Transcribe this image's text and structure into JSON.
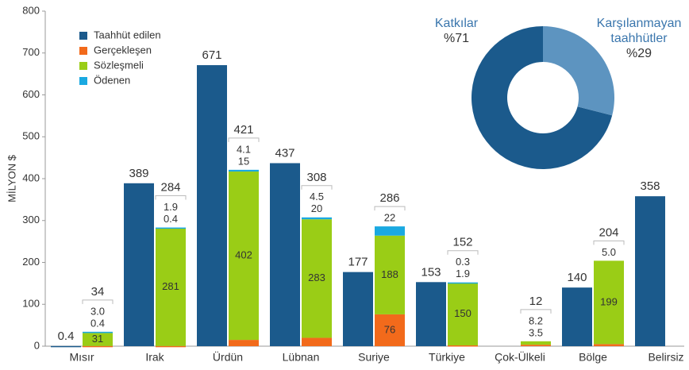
{
  "chart_data": [
    {
      "type": "bar",
      "ylabel": "MİLYON $",
      "categories": [
        "Mısır",
        "Irak",
        "Ürdün",
        "Lübnan",
        "Suriye",
        "Türkiye",
        "Çok-Ülkeli",
        "Bölge",
        "Belirsiz"
      ],
      "series": [
        {
          "name": "Taahhüt edilen",
          "color": "#1b5a8c",
          "values": [
            0.4,
            389,
            671,
            437,
            177,
            153,
            null,
            140,
            358
          ]
        },
        {
          "name": "Gerçekleşen",
          "color": "#f26a1b",
          "values": [
            0.4,
            0.4,
            15,
            20,
            76,
            1.9,
            3.5,
            5.0,
            null
          ],
          "value_labels": [
            "0.4",
            "0.4",
            "15",
            "20",
            "76",
            "1.9",
            "3.5",
            "5.0",
            null
          ]
        },
        {
          "name": "Sözleşmeli",
          "color": "#9acd16",
          "values": [
            31,
            281,
            402,
            283,
            188,
            150,
            8.2,
            199,
            null
          ],
          "value_labels": [
            "31",
            "281",
            "402",
            "283",
            "188",
            "150",
            "8.2",
            "199",
            null
          ]
        },
        {
          "name": "Ödenen",
          "color": "#1aa9e1",
          "values": [
            3.0,
            1.9,
            4.1,
            4.5,
            22,
            0.3,
            null,
            null,
            null
          ],
          "value_labels": [
            "3.0",
            "1.9",
            "4.1",
            "4.5",
            "22",
            "0.3",
            null,
            null,
            null
          ]
        }
      ],
      "totals": [
        34,
        284,
        421,
        308,
        286,
        152,
        12,
        204,
        null
      ],
      "ylim": [
        0,
        800
      ],
      "yticks": [
        0,
        100,
        200,
        300,
        400,
        500,
        600,
        700,
        800
      ]
    },
    {
      "type": "pie",
      "categories": [
        "Katkılar",
        "Karşılanmayan taahhütler"
      ],
      "values": [
        71,
        29
      ],
      "value_labels": [
        "%71",
        "%29"
      ],
      "colors": [
        "#1b5a8c",
        "#5d94c0"
      ]
    }
  ]
}
